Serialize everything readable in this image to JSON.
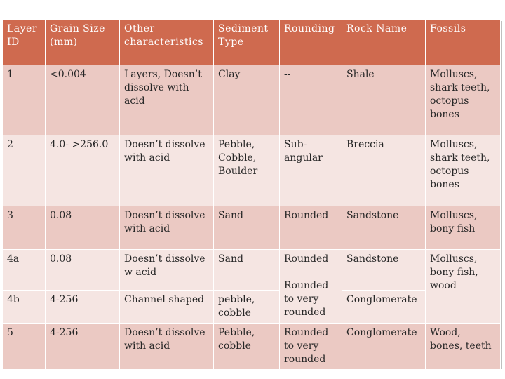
{
  "table": {
    "headers": [
      "Layer ID",
      "Grain Size (mm)",
      "Other characteristics",
      "Sediment Type",
      "Rounding",
      "Rock Name",
      "Fossils"
    ],
    "rows": [
      {
        "layer_id": "1",
        "grain_size": "<0.004",
        "other": "Layers, Doesn’t dissolve with acid",
        "sediment": "Clay",
        "rounding": "--",
        "rock": "Shale",
        "fossils": "Molluscs, shark teeth, octopus bones"
      },
      {
        "layer_id": "2",
        "grain_size": "4.0- >256.0",
        "other": "Doesn’t dissolve with acid",
        "sediment": "Pebble, Cobble, Boulder",
        "rounding": "Sub-angular",
        "rock": "Breccia",
        "fossils": "Molluscs, shark teeth, octopus bones"
      },
      {
        "layer_id": "3",
        "grain_size": "0.08",
        "other": "Doesn’t dissolve with acid",
        "sediment": "Sand",
        "rounding": "Rounded",
        "rock": "Sandstone",
        "fossils": "Molluscs, bony fish"
      },
      {
        "layer_id": "4a",
        "grain_size": "0.08",
        "other": "Doesn’t dissolve w acid",
        "sediment": "Sand",
        "rounding": "Rounded",
        "rock": "Sandstone",
        "fossils": "Molluscs, bony fish, wood"
      },
      {
        "layer_id": "4b",
        "grain_size": "4-256",
        "other": "Channel shaped",
        "sediment": "pebble, cobble",
        "rounding": "Rounded to very rounded",
        "rock": "Conglomerate",
        "fossils": ""
      },
      {
        "layer_id": "5",
        "grain_size": "4-256",
        "other": "Doesn’t dissolve with acid",
        "sediment": "Pebble, cobble",
        "rounding": "Rounded to very rounded",
        "rock": "Conglomerate",
        "fossils": "Wood, bones, teeth"
      }
    ]
  }
}
